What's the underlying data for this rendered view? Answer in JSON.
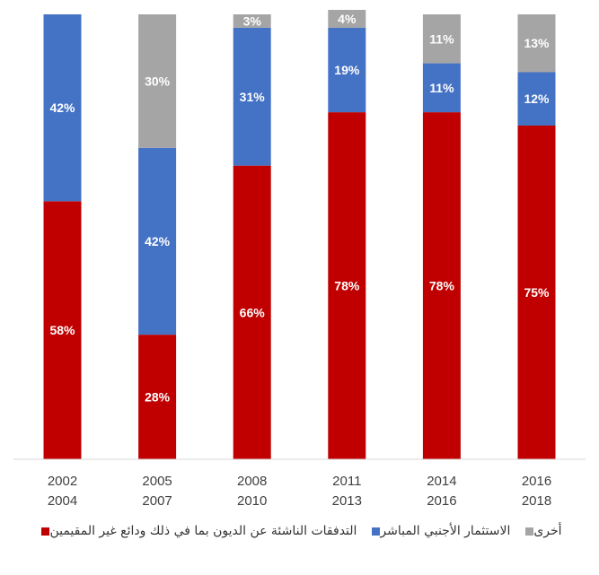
{
  "chart_data": {
    "type": "bar",
    "stacked": true,
    "percent": true,
    "categories": [
      [
        "2002",
        "2004"
      ],
      [
        "2005",
        "2007"
      ],
      [
        "2008",
        "2010"
      ],
      [
        "2011",
        "2013"
      ],
      [
        "2014",
        "2016"
      ],
      [
        "2016",
        "2018"
      ]
    ],
    "series": [
      {
        "name": "التدفقات الناشئة عن الديون بما في ذلك ودائع غير المقيمين",
        "color": "#C00000",
        "values": [
          58,
          28,
          66,
          78,
          78,
          75
        ]
      },
      {
        "name": "الاستثمار الأجنبي المباشر",
        "color": "#4472C4",
        "values": [
          42,
          42,
          31,
          19,
          11,
          12
        ]
      },
      {
        "name": "أخرى",
        "color": "#A5A5A5",
        "values": [
          0,
          30,
          3,
          4,
          11,
          13
        ]
      }
    ],
    "data_labels": [
      [
        "58%",
        "28%",
        "66%",
        "78%",
        "78%",
        "75%"
      ],
      [
        "42%",
        "42%",
        "31%",
        "19%",
        "11%",
        "12%"
      ],
      [
        "",
        "30%",
        "3%",
        "4%",
        "11%",
        "13%"
      ]
    ],
    "ylim": [
      0,
      100
    ],
    "grid": false,
    "legend_position": "bottom"
  }
}
